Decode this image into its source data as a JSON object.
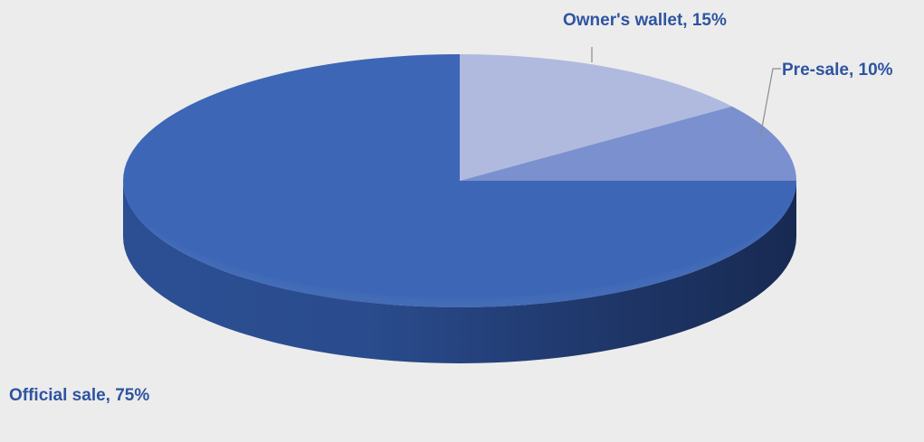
{
  "chart_data": {
    "type": "pie",
    "style": "3d",
    "title": "",
    "slices": [
      {
        "label": "Owner's wallet",
        "value": 15,
        "percent_label": "15%",
        "color": "#b0bade"
      },
      {
        "label": "Pre-sale",
        "value": 10,
        "percent_label": "10%",
        "color": "#7b90cf"
      },
      {
        "label": "Official sale",
        "value": 75,
        "percent_label": "75%",
        "color": "#3d67b6"
      }
    ],
    "label_color": "#2e54a1",
    "background": "#ececec",
    "legend": "none"
  }
}
